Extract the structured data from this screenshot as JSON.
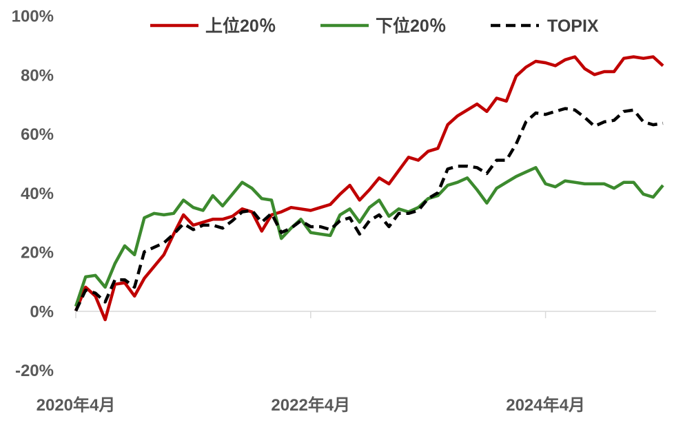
{
  "chart_data": {
    "type": "line",
    "yticks": [
      "100%",
      "80%",
      "60%",
      "40%",
      "20%",
      "0%",
      "-20%"
    ],
    "ytick_values": [
      100,
      80,
      60,
      40,
      20,
      0,
      -20
    ],
    "ylim": [
      -20,
      100
    ],
    "xticks": [
      {
        "label": "2020年4月",
        "index": 0
      },
      {
        "label": "2022年4月",
        "index": 24
      },
      {
        "label": "2024年4月",
        "index": 48
      }
    ],
    "legend_position": "top",
    "grid": false,
    "series": [
      {
        "name": "上位20%",
        "legend_label": "上位20％",
        "color": "#c00000",
        "dash": "solid",
        "values": [
          0,
          8,
          5,
          -3,
          9,
          9.5,
          5,
          11,
          15,
          19,
          26,
          32.5,
          29,
          30,
          31,
          31,
          32,
          34.5,
          33.5,
          27,
          32.5,
          33.5,
          35,
          34.5,
          34,
          35,
          36,
          39.5,
          42.5,
          37.5,
          41,
          45,
          43,
          47.5,
          52,
          51,
          54,
          55,
          63,
          66,
          68,
          70,
          67.5,
          72,
          71,
          79.5,
          82.5,
          84.5,
          84,
          83,
          85,
          86,
          82,
          80,
          81,
          81,
          85.5,
          86,
          85.5,
          86,
          83
        ]
      },
      {
        "name": "下位20%",
        "legend_label": "下位20％",
        "color": "#3c8a2e",
        "dash": "solid",
        "values": [
          1.5,
          11.5,
          12,
          8,
          16,
          22,
          19,
          31.5,
          33,
          32.5,
          33,
          37.5,
          35,
          34,
          39,
          35.5,
          39.5,
          43.5,
          41.5,
          38,
          37.5,
          24.5,
          28,
          31,
          26.5,
          26,
          25.5,
          32.5,
          34.5,
          30,
          35,
          37.5,
          32,
          34.5,
          33.5,
          35,
          38,
          39,
          42.5,
          43.5,
          45,
          41,
          36.5,
          41.5,
          43.5,
          45.5,
          47,
          48.5,
          43,
          42,
          44,
          43.5,
          43,
          43,
          43,
          41.5,
          43.5,
          43.5,
          39.5,
          38.5,
          42.5
        ]
      },
      {
        "name": "TOPIX",
        "legend_label": "TOPIX",
        "color": "#000000",
        "dash": "dashed",
        "values": [
          0,
          7,
          6,
          3,
          10.5,
          10.5,
          8,
          20,
          21.5,
          23,
          26,
          29.5,
          27.5,
          29,
          29,
          28,
          30.5,
          33.5,
          34,
          30,
          33,
          26.5,
          28,
          30.5,
          28.5,
          28.5,
          27.5,
          30.5,
          31.5,
          26,
          30.5,
          32.5,
          28.5,
          33,
          33,
          34,
          38,
          40,
          48,
          49,
          49,
          48.5,
          46.5,
          51,
          51,
          56.5,
          64,
          67,
          66.5,
          67.5,
          68.5,
          68,
          65.5,
          62.5,
          64,
          64.5,
          67.5,
          68,
          64,
          63,
          63.5
        ]
      }
    ]
  }
}
